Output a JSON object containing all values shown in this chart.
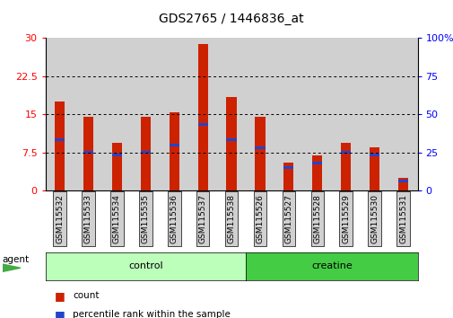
{
  "title": "GDS2765 / 1446836_at",
  "categories": [
    "GSM115532",
    "GSM115533",
    "GSM115534",
    "GSM115535",
    "GSM115536",
    "GSM115537",
    "GSM115538",
    "GSM115526",
    "GSM115527",
    "GSM115528",
    "GSM115529",
    "GSM115530",
    "GSM115531"
  ],
  "red_values": [
    17.5,
    14.5,
    9.5,
    14.5,
    15.5,
    28.8,
    18.5,
    14.5,
    5.5,
    7.0,
    9.5,
    8.5,
    2.5
  ],
  "blue_values": [
    10.0,
    7.5,
    7.0,
    7.5,
    9.0,
    13.0,
    10.0,
    8.5,
    4.5,
    5.5,
    7.5,
    7.0,
    2.0
  ],
  "ylim_left": [
    0,
    30
  ],
  "ylim_right": [
    0,
    100
  ],
  "yticks_left": [
    0,
    7.5,
    15,
    22.5,
    30
  ],
  "yticks_left_labels": [
    "0",
    "7.5",
    "15",
    "22.5",
    "30"
  ],
  "yticks_right": [
    0,
    25,
    50,
    75,
    100
  ],
  "yticks_right_labels": [
    "0",
    "25",
    "50",
    "75",
    "100%"
  ],
  "group1_label": "control",
  "group2_label": "creatine",
  "group1_count": 7,
  "group2_count": 6,
  "agent_label": "agent",
  "bar_color": "#cc2200",
  "blue_color": "#2244cc",
  "bar_width": 0.35,
  "col_bg_color": "#d0d0d0",
  "group1_bg": "#bbffbb",
  "group2_bg": "#44cc44",
  "legend_count": "count",
  "legend_pct": "percentile rank within the sample",
  "blue_bar_height": 0.55
}
